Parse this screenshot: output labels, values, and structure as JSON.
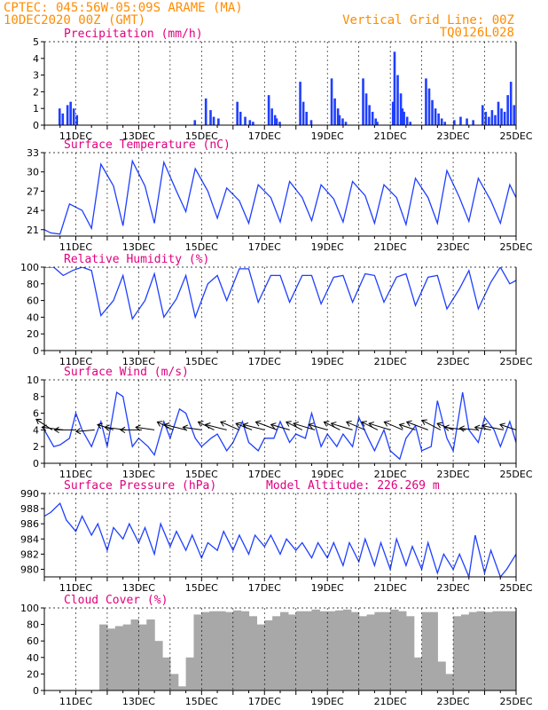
{
  "header": {
    "left_line1": "CPTEC:   045:56W-05:09S   ARAME (MA)",
    "left_line2": "10DEC2020 00Z (GMT)",
    "right_line1": "Vertical Grid Line: 00Z",
    "right_line2": "TQ0126L028"
  },
  "colors": {
    "header": "#ff8c00",
    "title": "#e0007f",
    "series": "#1f3fff",
    "cloud": "#a8a8a8",
    "wind_vectors": "#000000",
    "grid": "#000000"
  },
  "x_axis": {
    "start": "10DEC2020 00Z",
    "end": "25DEC2020 00Z",
    "tick_labels": [
      "11DEC",
      "13DEC",
      "15DEC",
      "17DEC",
      "19DEC",
      "21DEC",
      "23DEC",
      "25DEC"
    ]
  },
  "chart_data": [
    {
      "id": "precip",
      "type": "bar",
      "title": "Precipitation (mm/h)",
      "ylim": [
        0,
        5
      ],
      "yticks": [
        "0",
        "1",
        "2",
        "3",
        "4",
        "5"
      ],
      "grid": "dashed-vertical-00Z",
      "x_days": [
        0.45,
        0.55,
        0.7,
        0.8,
        0.9,
        1.0,
        4.75,
        5.1,
        5.25,
        5.35,
        5.5,
        6.1,
        6.2,
        6.35,
        6.5,
        6.6,
        7.1,
        7.2,
        7.3,
        7.35,
        7.45,
        8.1,
        8.2,
        8.3,
        8.45,
        9.1,
        9.2,
        9.3,
        9.35,
        9.45,
        9.55,
        10.1,
        10.2,
        10.3,
        10.4,
        10.5,
        10.55,
        11.05,
        11.1,
        11.2,
        11.3,
        11.35,
        11.4,
        11.5,
        11.6,
        12.1,
        12.2,
        12.3,
        12.4,
        12.5,
        12.6,
        12.7,
        13.0,
        13.2,
        13.4,
        13.6,
        13.9,
        14.0,
        14.1,
        14.2,
        14.3,
        14.4,
        14.5,
        14.6,
        14.7,
        14.8,
        14.9
      ],
      "values": [
        1.0,
        0.7,
        1.2,
        1.4,
        1.0,
        0.6,
        0.3,
        1.6,
        0.9,
        0.5,
        0.4,
        1.4,
        0.8,
        0.5,
        0.3,
        0.2,
        1.8,
        1.0,
        0.6,
        0.4,
        0.2,
        2.6,
        1.4,
        0.8,
        0.3,
        2.8,
        1.6,
        1.0,
        0.6,
        0.4,
        0.2,
        2.8,
        1.9,
        1.2,
        0.8,
        0.4,
        0.2,
        1.4,
        4.4,
        3.0,
        1.9,
        1.0,
        0.8,
        0.5,
        0.2,
        2.8,
        2.2,
        1.5,
        1.0,
        0.7,
        0.4,
        0.2,
        0.3,
        0.5,
        0.4,
        0.3,
        1.2,
        0.8,
        0.5,
        0.9,
        0.6,
        1.4,
        1.0,
        0.8,
        1.8,
        2.6,
        1.2
      ]
    },
    {
      "id": "temp",
      "type": "line",
      "title": "Surface Temperature (nC)",
      "ylim": [
        20,
        33
      ],
      "yticks": [
        "21",
        "24",
        "27",
        "30",
        "33"
      ],
      "grid": "dashed-vertical-00Z",
      "x_days": [
        0.0,
        0.2,
        0.5,
        0.8,
        1.2,
        1.5,
        1.8,
        2.2,
        2.5,
        2.8,
        3.2,
        3.5,
        3.8,
        4.2,
        4.5,
        4.8,
        5.2,
        5.5,
        5.8,
        6.2,
        6.5,
        6.8,
        7.2,
        7.5,
        7.8,
        8.2,
        8.5,
        8.8,
        9.2,
        9.5,
        9.8,
        10.2,
        10.5,
        10.8,
        11.2,
        11.5,
        11.8,
        12.2,
        12.5,
        12.8,
        13.2,
        13.5,
        13.8,
        14.2,
        14.5,
        14.8,
        15.0
      ],
      "values": [
        21.0,
        20.5,
        20.3,
        25.0,
        24.0,
        21.2,
        31.2,
        27.8,
        21.6,
        31.7,
        27.8,
        22.0,
        31.5,
        27.0,
        23.8,
        30.5,
        27.0,
        22.8,
        27.5,
        25.5,
        22.0,
        28.0,
        26.0,
        22.2,
        28.5,
        26.0,
        22.4,
        28.0,
        25.8,
        22.2,
        28.5,
        26.3,
        22.0,
        28.0,
        26.0,
        21.8,
        29.0,
        26.0,
        22.0,
        30.2,
        26.0,
        22.3,
        29.0,
        25.5,
        22.0,
        28.0,
        26.0
      ]
    },
    {
      "id": "rh",
      "type": "line",
      "title": "Relative Humidity (%)",
      "ylim": [
        0,
        100
      ],
      "yticks": [
        "0",
        "20",
        "40",
        "60",
        "80",
        "100"
      ],
      "grid": "dashed-vertical-00Z",
      "x_days": [
        0.0,
        0.3,
        0.6,
        0.9,
        1.2,
        1.5,
        1.8,
        2.2,
        2.5,
        2.8,
        3.2,
        3.5,
        3.8,
        4.2,
        4.5,
        4.8,
        5.2,
        5.5,
        5.8,
        6.2,
        6.5,
        6.8,
        7.2,
        7.5,
        7.8,
        8.2,
        8.5,
        8.8,
        9.2,
        9.5,
        9.8,
        10.2,
        10.5,
        10.8,
        11.2,
        11.5,
        11.8,
        12.2,
        12.5,
        12.8,
        13.2,
        13.5,
        13.8,
        14.2,
        14.5,
        14.8,
        15.0
      ],
      "values": [
        100,
        100,
        90,
        96,
        100,
        96,
        42,
        60,
        90,
        38,
        60,
        92,
        40,
        62,
        90,
        40,
        80,
        90,
        60,
        98,
        98,
        58,
        90,
        90,
        58,
        90,
        90,
        56,
        88,
        90,
        58,
        92,
        90,
        58,
        88,
        92,
        54,
        88,
        90,
        50,
        74,
        96,
        50,
        82,
        100,
        80,
        84
      ]
    },
    {
      "id": "wind",
      "type": "line",
      "title": "Surface Wind (m/s)",
      "ylim": [
        0,
        10
      ],
      "yticks": [
        "0",
        "2",
        "4",
        "6",
        "8",
        "10"
      ],
      "grid": "dashed-vertical-00Z",
      "x_days": [
        0.0,
        0.3,
        0.5,
        0.8,
        1.0,
        1.2,
        1.5,
        1.8,
        2.0,
        2.3,
        2.5,
        2.8,
        3.0,
        3.3,
        3.5,
        3.8,
        4.0,
        4.3,
        4.5,
        4.8,
        5.0,
        5.3,
        5.5,
        5.8,
        6.0,
        6.3,
        6.5,
        6.8,
        7.0,
        7.3,
        7.5,
        7.8,
        8.0,
        8.3,
        8.5,
        8.8,
        9.0,
        9.3,
        9.5,
        9.8,
        10.0,
        10.3,
        10.5,
        10.8,
        11.0,
        11.3,
        11.5,
        11.8,
        12.0,
        12.3,
        12.5,
        12.8,
        13.0,
        13.3,
        13.5,
        13.8,
        14.0,
        14.3,
        14.5,
        14.8,
        15.0
      ],
      "values": [
        4.0,
        2.0,
        2.2,
        3.0,
        6.0,
        4.0,
        2.0,
        5.0,
        2.0,
        8.5,
        8.0,
        2.0,
        3.0,
        2.0,
        1.0,
        5.0,
        3.0,
        6.5,
        6.0,
        3.0,
        2.0,
        3.0,
        3.5,
        1.5,
        2.5,
        5.0,
        2.5,
        1.5,
        3.0,
        3.0,
        5.0,
        2.5,
        3.5,
        3.0,
        6.0,
        2.0,
        3.5,
        2.0,
        3.5,
        2.0,
        5.5,
        3.0,
        1.5,
        4.0,
        1.5,
        0.5,
        3.0,
        4.5,
        1.5,
        2.0,
        7.5,
        3.0,
        1.5,
        8.5,
        4.0,
        2.5,
        5.5,
        4.0,
        2.0,
        5.0,
        2.5
      ],
      "vectors": {
        "x_days": [
          0.25,
          0.6,
          1.0,
          1.6,
          2.2,
          2.6,
          3.1,
          3.5,
          4.1,
          4.5,
          5.0,
          5.4,
          5.8,
          6.2,
          6.6,
          7.0,
          7.4,
          7.8,
          8.2,
          8.6,
          9.0,
          9.4,
          9.8,
          10.2,
          10.6,
          11.0,
          11.4,
          11.8,
          12.2,
          12.6,
          13.0,
          13.4,
          13.8,
          14.2,
          14.6,
          15.0
        ],
        "u": [
          -3,
          -4,
          -4,
          -3.5,
          -3,
          -4,
          -4,
          -3.5,
          -3,
          -4,
          -3.5,
          -3,
          -4,
          -3.5,
          -3,
          -4,
          -4,
          -3.5,
          -3,
          -4,
          -3.5,
          -3,
          -4,
          -3.5,
          -3,
          -4,
          -3.5,
          -3,
          -4,
          -3.5,
          -3,
          -4,
          -3.5,
          -3,
          -4,
          -3
        ],
        "v": [
          2,
          0.5,
          0,
          -0.3,
          1,
          0.5,
          0,
          0.5,
          1.5,
          1,
          0.5,
          1.5,
          1,
          1.5,
          1.2,
          1,
          1.5,
          1,
          1.5,
          1.2,
          1,
          1.5,
          1.2,
          1.5,
          1.5,
          1.2,
          1.5,
          1,
          1.5,
          1.8,
          1.2,
          0.5,
          0.3,
          0.5,
          0.8,
          1
        ]
      }
    },
    {
      "id": "pressure",
      "type": "line",
      "title": "Surface Pressure (hPa)",
      "annotation": "Model Altitude: 226.269 m",
      "ylim": [
        979,
        990
      ],
      "yticks": [
        "980",
        "982",
        "984",
        "986",
        "988",
        "990"
      ],
      "grid": "dashed-vertical-00Z",
      "x_days": [
        0.0,
        0.2,
        0.5,
        0.7,
        1.0,
        1.2,
        1.5,
        1.7,
        2.0,
        2.2,
        2.5,
        2.7,
        3.0,
        3.2,
        3.5,
        3.7,
        4.0,
        4.2,
        4.5,
        4.7,
        5.0,
        5.2,
        5.5,
        5.7,
        6.0,
        6.2,
        6.5,
        6.7,
        7.0,
        7.2,
        7.5,
        7.7,
        8.0,
        8.2,
        8.5,
        8.7,
        9.0,
        9.2,
        9.5,
        9.7,
        10.0,
        10.2,
        10.5,
        10.7,
        11.0,
        11.2,
        11.5,
        11.7,
        12.0,
        12.2,
        12.5,
        12.7,
        13.0,
        13.2,
        13.5,
        13.7,
        14.0,
        14.2,
        14.5,
        14.7,
        15.0
      ],
      "values": [
        987.0,
        987.5,
        988.7,
        986.5,
        985.0,
        987.0,
        984.5,
        986.0,
        982.5,
        985.5,
        984.0,
        986.0,
        983.5,
        985.5,
        982.0,
        986.0,
        983.0,
        985.0,
        982.5,
        984.5,
        981.5,
        983.5,
        982.5,
        985.0,
        982.5,
        984.5,
        982.0,
        984.5,
        983.0,
        984.5,
        982.0,
        984.0,
        982.5,
        983.5,
        981.5,
        983.5,
        981.5,
        983.5,
        980.5,
        983.5,
        981.0,
        984.0,
        980.5,
        983.5,
        980.0,
        984.0,
        980.5,
        983.0,
        980.0,
        983.5,
        979.5,
        982.0,
        980.0,
        982.0,
        979.0,
        984.5,
        979.5,
        982.5,
        979.0,
        980.0,
        982.0
      ]
    },
    {
      "id": "cloud",
      "type": "bar",
      "title": "Cloud Cover (%)",
      "ylim": [
        0,
        100
      ],
      "yticks": [
        "0",
        "20",
        "40",
        "60",
        "80",
        "100"
      ],
      "grid": "dashed-vertical-00Z",
      "x_days": [
        0.0,
        0.25,
        0.5,
        0.75,
        1.0,
        1.25,
        1.5,
        1.75,
        2.0,
        2.25,
        2.5,
        2.75,
        3.0,
        3.25,
        3.5,
        3.75,
        4.0,
        4.25,
        4.5,
        4.75,
        5.0,
        5.25,
        5.5,
        5.75,
        6.0,
        6.25,
        6.5,
        6.75,
        7.0,
        7.25,
        7.5,
        7.75,
        8.0,
        8.25,
        8.5,
        8.75,
        9.0,
        9.25,
        9.5,
        9.75,
        10.0,
        10.25,
        10.5,
        10.75,
        11.0,
        11.25,
        11.5,
        11.75,
        12.0,
        12.25,
        12.5,
        12.75,
        13.0,
        13.25,
        13.5,
        13.75,
        14.0,
        14.25,
        14.5,
        14.75
      ],
      "values": [
        0,
        0,
        0,
        0,
        0,
        0,
        0,
        80,
        75,
        78,
        80,
        86,
        80,
        86,
        60,
        40,
        20,
        5,
        40,
        92,
        95,
        96,
        96,
        95,
        97,
        96,
        90,
        80,
        85,
        90,
        95,
        92,
        96,
        96,
        98,
        96,
        96,
        97,
        98,
        95,
        90,
        92,
        95,
        95,
        98,
        96,
        90,
        40,
        95,
        95,
        35,
        20,
        90,
        92,
        95,
        96,
        95,
        96,
        96,
        96
      ]
    }
  ]
}
